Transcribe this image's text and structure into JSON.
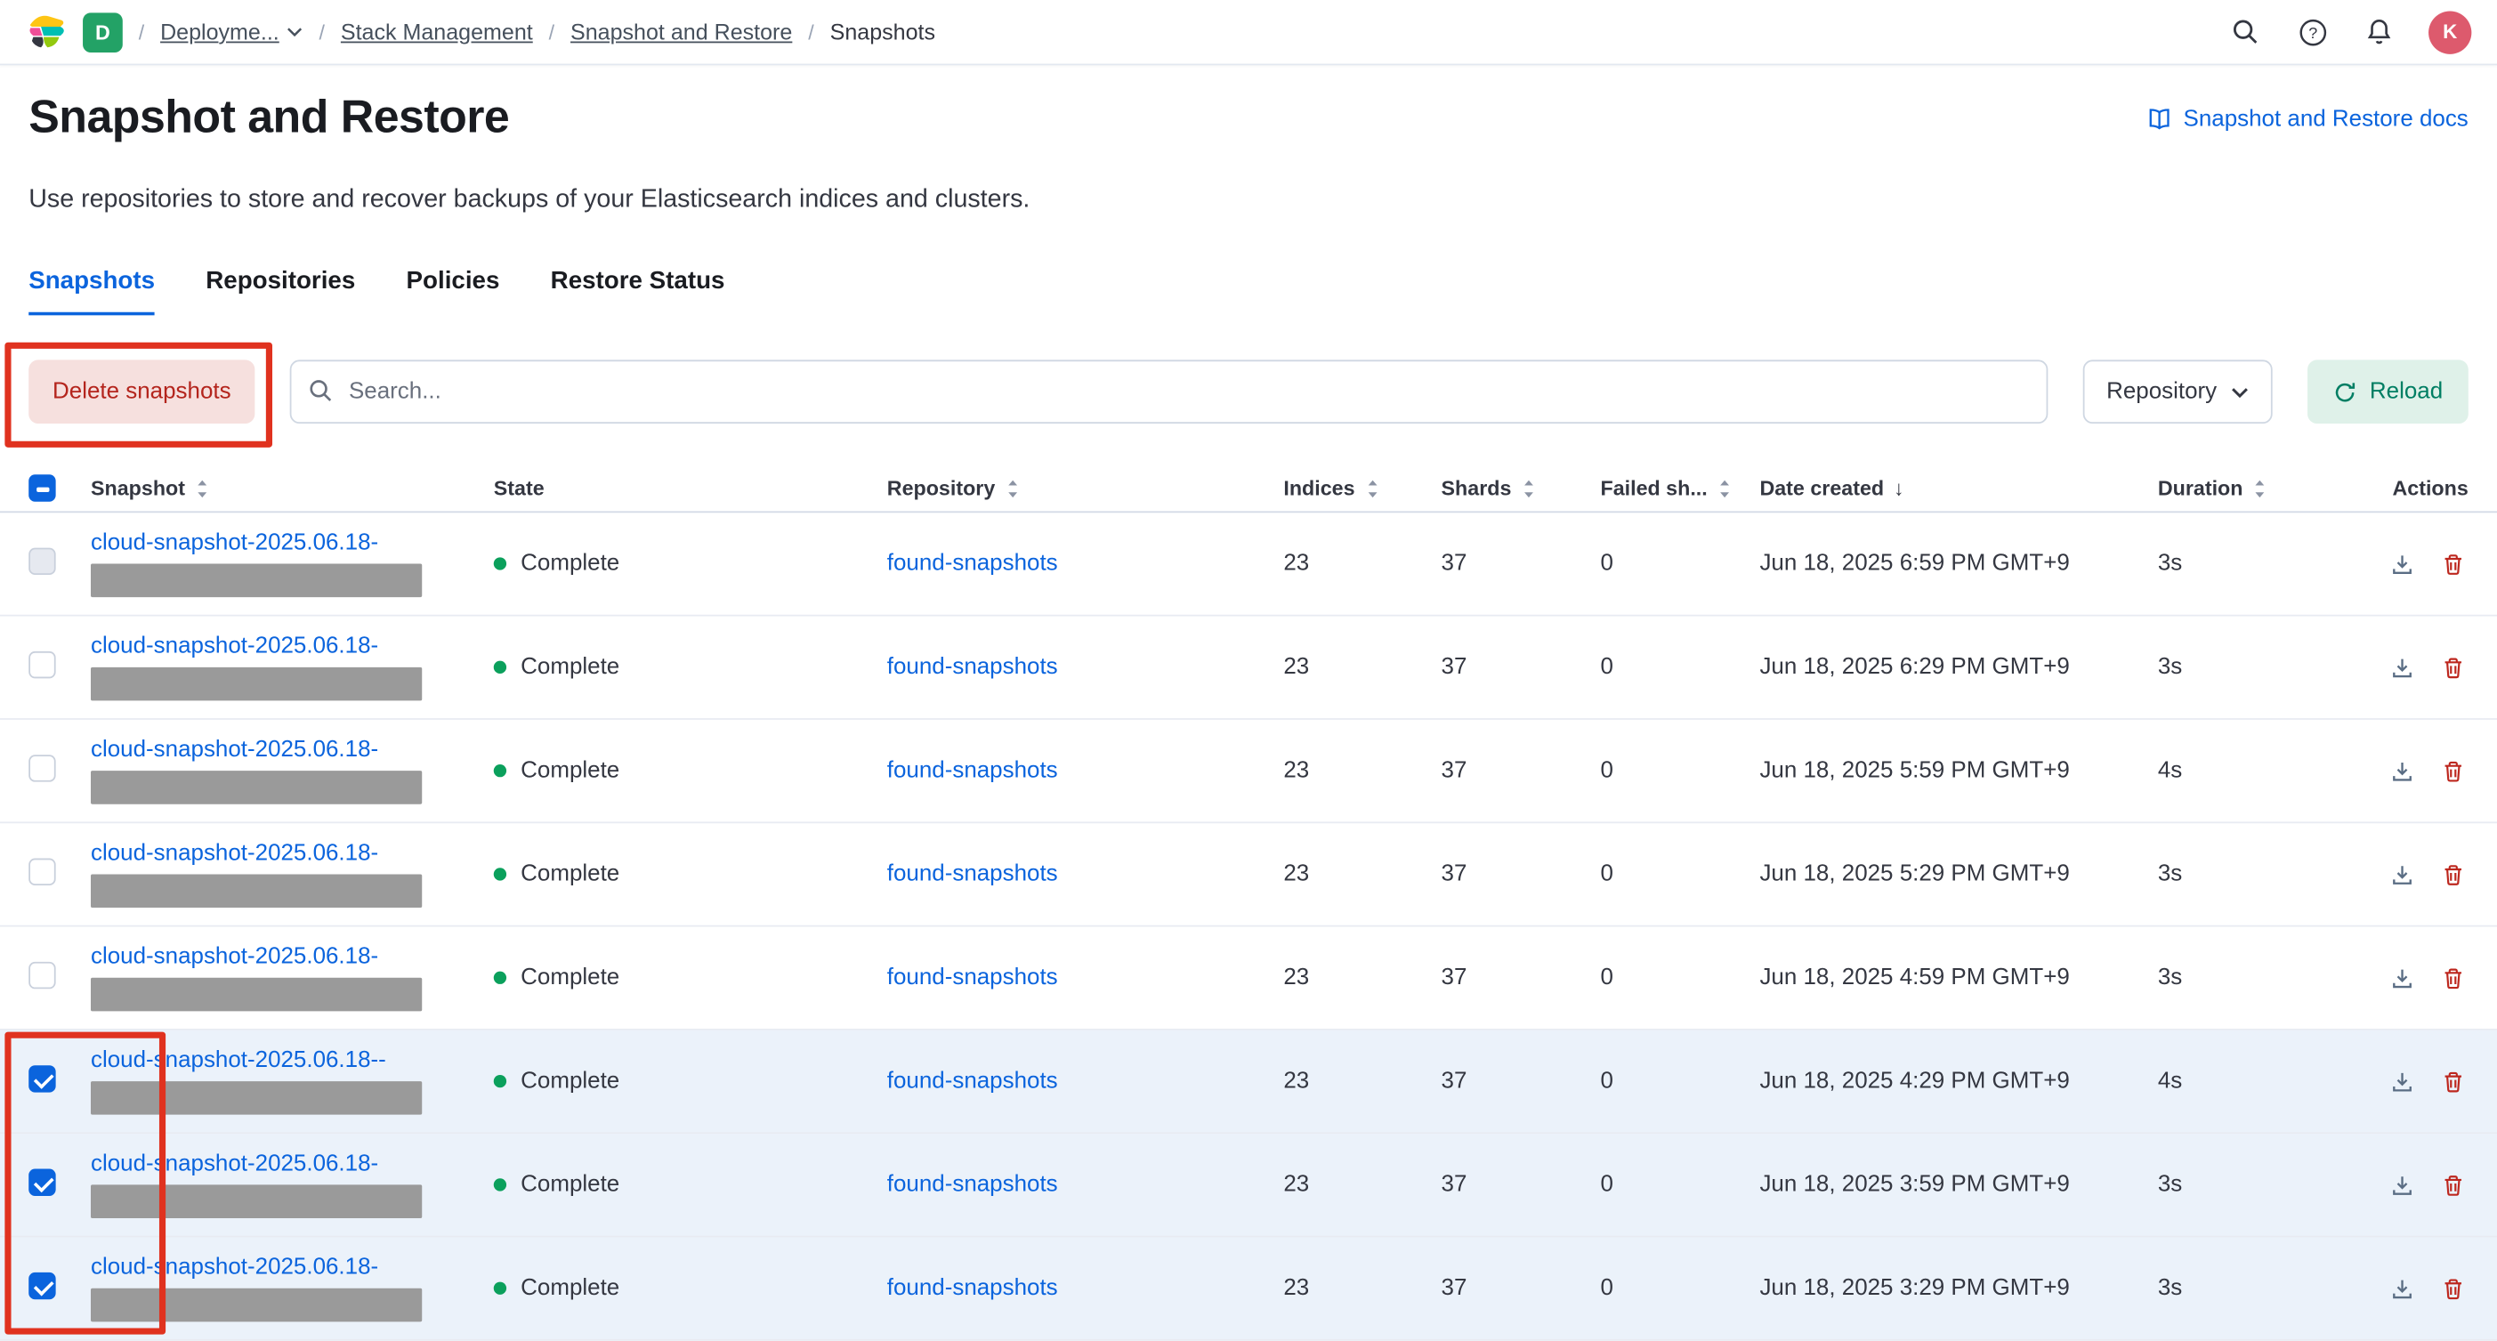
{
  "header": {
    "deployment_badge": "D",
    "breadcrumbs": [
      {
        "label": "Deployme...",
        "has_dropdown": true
      },
      {
        "label": "Stack Management",
        "has_dropdown": false
      },
      {
        "label": "Snapshot and Restore",
        "has_dropdown": false
      },
      {
        "label": "Snapshots",
        "has_dropdown": false
      }
    ],
    "avatar_initial": "K"
  },
  "page": {
    "title": "Snapshot and Restore",
    "docs_link_label": "Snapshot and Restore docs",
    "description": "Use repositories to store and recover backups of your Elasticsearch indices and clusters."
  },
  "tabs": [
    {
      "label": "Snapshots",
      "active": true
    },
    {
      "label": "Repositories",
      "active": false
    },
    {
      "label": "Policies",
      "active": false
    },
    {
      "label": "Restore Status",
      "active": false
    }
  ],
  "toolbar": {
    "delete_button_label": "Delete snapshots",
    "search_placeholder": "Search...",
    "repository_filter_label": "Repository",
    "reload_button_label": "Reload"
  },
  "table": {
    "select_all_state": "indeterminate",
    "columns": [
      {
        "label": "Snapshot",
        "sort": "both"
      },
      {
        "label": "State",
        "sort": null
      },
      {
        "label": "Repository",
        "sort": "both"
      },
      {
        "label": "Indices",
        "sort": "both"
      },
      {
        "label": "Shards",
        "sort": "both"
      },
      {
        "label": "Failed sh...",
        "sort": "both"
      },
      {
        "label": "Date created",
        "sort": "desc"
      },
      {
        "label": "Duration",
        "sort": "both"
      },
      {
        "label": "Actions",
        "sort": null
      }
    ],
    "rows": [
      {
        "snapshot": "cloud-snapshot-2025.06.18-",
        "state": "Complete",
        "repository": "found-snapshots",
        "indices": "23",
        "shards": "37",
        "failed": "0",
        "date": "Jun 18, 2025 6:59 PM GMT+9",
        "duration": "3s",
        "selected": false,
        "checkbox": "muted"
      },
      {
        "snapshot": "cloud-snapshot-2025.06.18-",
        "state": "Complete",
        "repository": "found-snapshots",
        "indices": "23",
        "shards": "37",
        "failed": "0",
        "date": "Jun 18, 2025 6:29 PM GMT+9",
        "duration": "3s",
        "selected": false,
        "checkbox": "unchecked"
      },
      {
        "snapshot": "cloud-snapshot-2025.06.18-",
        "state": "Complete",
        "repository": "found-snapshots",
        "indices": "23",
        "shards": "37",
        "failed": "0",
        "date": "Jun 18, 2025 5:59 PM GMT+9",
        "duration": "4s",
        "selected": false,
        "checkbox": "unchecked"
      },
      {
        "snapshot": "cloud-snapshot-2025.06.18-",
        "state": "Complete",
        "repository": "found-snapshots",
        "indices": "23",
        "shards": "37",
        "failed": "0",
        "date": "Jun 18, 2025 5:29 PM GMT+9",
        "duration": "3s",
        "selected": false,
        "checkbox": "unchecked"
      },
      {
        "snapshot": "cloud-snapshot-2025.06.18-",
        "state": "Complete",
        "repository": "found-snapshots",
        "indices": "23",
        "shards": "37",
        "failed": "0",
        "date": "Jun 18, 2025 4:59 PM GMT+9",
        "duration": "3s",
        "selected": false,
        "checkbox": "unchecked"
      },
      {
        "snapshot": "cloud-snapshot-2025.06.18--",
        "state": "Complete",
        "repository": "found-snapshots",
        "indices": "23",
        "shards": "37",
        "failed": "0",
        "date": "Jun 18, 2025 4:29 PM GMT+9",
        "duration": "4s",
        "selected": true,
        "checkbox": "checked"
      },
      {
        "snapshot": "cloud-snapshot-2025.06.18-",
        "state": "Complete",
        "repository": "found-snapshots",
        "indices": "23",
        "shards": "37",
        "failed": "0",
        "date": "Jun 18, 2025 3:59 PM GMT+9",
        "duration": "3s",
        "selected": true,
        "checkbox": "checked"
      },
      {
        "snapshot": "cloud-snapshot-2025.06.18-",
        "state": "Complete",
        "repository": "found-snapshots",
        "indices": "23",
        "shards": "37",
        "failed": "0",
        "date": "Jun 18, 2025 3:29 PM GMT+9",
        "duration": "3s",
        "selected": true,
        "checkbox": "checked"
      }
    ]
  },
  "colors": {
    "primary_blue": "#0B64DD",
    "danger_red": "#BD271E",
    "danger_button_bg": "#F6E0DE",
    "danger_button_text": "#B4251D",
    "success_dot": "#0BA05C",
    "reload_bg": "#DFF1E9",
    "reload_text": "#007E63",
    "selected_row_bg": "#EBF2FA",
    "annotation_red": "#E0321F",
    "redaction_gray": "#9A9A9A",
    "deployment_badge_bg": "#23A266",
    "avatar_bg": "#DD5A6D"
  }
}
